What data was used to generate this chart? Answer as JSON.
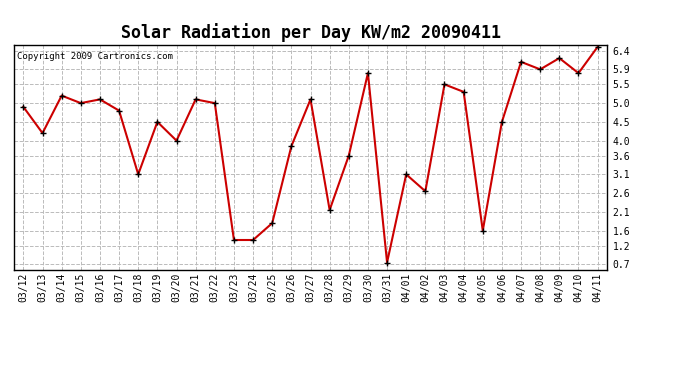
{
  "title": "Solar Radiation per Day KW/m2 20090411",
  "copyright": "Copyright 2009 Cartronics.com",
  "labels": [
    "03/12",
    "03/13",
    "03/14",
    "03/15",
    "03/16",
    "03/17",
    "03/18",
    "03/19",
    "03/20",
    "03/21",
    "03/22",
    "03/23",
    "03/24",
    "03/25",
    "03/26",
    "03/27",
    "03/28",
    "03/29",
    "03/30",
    "03/31",
    "04/01",
    "04/02",
    "04/03",
    "04/04",
    "04/05",
    "04/06",
    "04/07",
    "04/08",
    "04/09",
    "04/10",
    "04/11"
  ],
  "values": [
    4.9,
    4.2,
    5.2,
    5.0,
    5.1,
    4.8,
    3.1,
    4.5,
    4.0,
    5.1,
    5.0,
    1.35,
    1.35,
    1.8,
    3.85,
    5.1,
    2.15,
    3.6,
    5.8,
    0.75,
    3.1,
    2.65,
    5.5,
    5.3,
    1.6,
    4.5,
    6.1,
    5.9,
    6.2,
    5.8,
    6.5
  ],
  "line_color": "#cc0000",
  "marker_color": "#000000",
  "marker_face": "#cc0000",
  "bg_color": "#ffffff",
  "grid_color": "#bbbbbb",
  "ylim_min": 0.55,
  "ylim_max": 6.55,
  "yticks": [
    0.7,
    1.2,
    1.6,
    2.1,
    2.6,
    3.1,
    3.6,
    4.0,
    4.5,
    5.0,
    5.5,
    5.9,
    6.4
  ],
  "title_fontsize": 12,
  "tick_fontsize": 7,
  "copyright_fontsize": 6.5
}
